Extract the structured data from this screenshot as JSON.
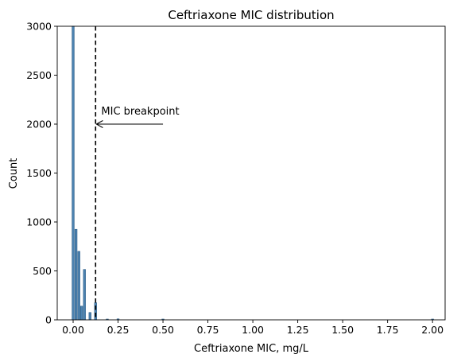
{
  "chart_data": {
    "type": "bar",
    "title": "Ceftriaxone MIC distribution",
    "xlabel": "Ceftriaxone MIC, mg/L",
    "ylabel": "Count",
    "xlim": [
      -0.0885,
      2.07
    ],
    "ylim": [
      0,
      3000
    ],
    "xticks": [
      "0.00",
      "0.25",
      "0.50",
      "0.75",
      "1.00",
      "1.25",
      "1.50",
      "1.75",
      "2.00"
    ],
    "yticks": [
      "0",
      "500",
      "1000",
      "1500",
      "2000",
      "2500",
      "3000"
    ],
    "grid": false,
    "bar_color": "#4c82b0",
    "bin_width": 0.012,
    "bars": [
      {
        "x": 0.0,
        "value": 3000
      },
      {
        "x": 0.016,
        "value": 925
      },
      {
        "x": 0.032,
        "value": 700
      },
      {
        "x": 0.047,
        "value": 140
      },
      {
        "x": 0.063,
        "value": 515
      },
      {
        "x": 0.094,
        "value": 75
      },
      {
        "x": 0.125,
        "value": 175
      },
      {
        "x": 0.19,
        "value": 8
      },
      {
        "x": 0.25,
        "value": 10
      },
      {
        "x": 0.5,
        "value": 6
      },
      {
        "x": 2.0,
        "value": 5
      }
    ],
    "reference_line": {
      "x": 0.125,
      "style": "dashed",
      "color": "#000000"
    },
    "annotation": {
      "text": "MIC breakpoint",
      "text_x": 0.5,
      "text_y": 2000,
      "arrow_to_x": 0.13,
      "arrow_to_y": 2000
    }
  }
}
